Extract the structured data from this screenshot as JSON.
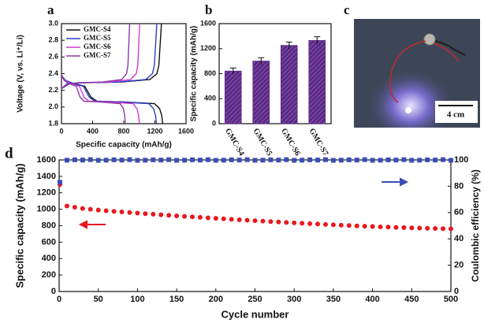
{
  "panel_labels": [
    "a",
    "b",
    "c",
    "d"
  ],
  "photo": {
    "scale_bar": "4 cm"
  },
  "chart_data": [
    {
      "type": "line",
      "xlabel": "Specific capacity (mAh/g)",
      "ylabel": "Voltage (V, vs. Li⁺/Li)",
      "xlim": [
        0,
        1600
      ],
      "xticks": [
        0,
        400,
        800,
        1200,
        1600
      ],
      "ylim": [
        1.8,
        3.0
      ],
      "yticks": [
        1.8,
        {
          "value": 2.0,
          "label": "2.0"
        },
        2.2,
        2.4,
        2.6,
        2.8,
        {
          "value": 3.0,
          "label": "3.0"
        }
      ],
      "series": [
        {
          "name": "GMC-S4",
          "color": "#111111",
          "x": [
            0,
            52,
            156,
            299,
            377,
            455,
            806,
            1196,
            1261,
            1287,
            1300,
            null,
            0,
            103,
            297,
            774,
            1135,
            1226,
            1251,
            1271,
            1284
          ],
          "values": [
            2.38,
            2.32,
            2.28,
            2.25,
            2.12,
            2.07,
            2.06,
            2.04,
            1.98,
            1.9,
            1.8,
            null,
            2.22,
            2.28,
            2.29,
            2.3,
            2.33,
            2.4,
            2.5,
            2.8,
            3.0
          ]
        },
        {
          "name": "GMC-S5",
          "color": "#2b3fc4",
          "x": [
            0,
            49,
            146,
            281,
            354,
            427,
            756,
            1122,
            1183,
            1208,
            1220,
            null,
            0,
            98,
            283,
            738,
            1082,
            1169,
            1193,
            1212,
            1224
          ],
          "values": [
            2.38,
            2.32,
            2.28,
            2.25,
            2.12,
            2.07,
            2.06,
            2.04,
            1.98,
            1.9,
            1.8,
            null,
            2.22,
            2.28,
            2.29,
            2.3,
            2.33,
            2.4,
            2.5,
            2.8,
            3.0
          ]
        },
        {
          "name": "GMC-S6",
          "color": "#d63ad0",
          "x": [
            0,
            40,
            120,
            230,
            290,
            350,
            620,
            920,
            970,
            990,
            1000,
            null,
            0,
            81,
            232,
            606,
            889,
            960,
            980,
            995,
            1005
          ],
          "values": [
            2.38,
            2.32,
            2.28,
            2.25,
            2.12,
            2.07,
            2.06,
            2.04,
            1.98,
            1.9,
            1.8,
            null,
            2.22,
            2.28,
            2.29,
            2.3,
            2.33,
            2.4,
            2.5,
            2.8,
            3.0
          ]
        },
        {
          "name": "GMC-S7",
          "color": "#8a3aa8",
          "x": [
            0,
            33,
            98,
            189,
            238,
            287,
            508,
            754,
            795,
            812,
            820,
            null,
            0,
            70,
            202,
            528,
            774,
            836,
            854,
            867,
            876
          ],
          "values": [
            2.38,
            2.32,
            2.28,
            2.25,
            2.12,
            2.07,
            2.06,
            2.04,
            1.98,
            1.9,
            1.8,
            null,
            2.22,
            2.28,
            2.29,
            2.3,
            2.33,
            2.4,
            2.5,
            2.8,
            3.0
          ]
        }
      ]
    },
    {
      "type": "bar",
      "ylabel": "Specific capacity (mAh/g)",
      "categories": [
        "GMC-S4",
        "GMC-S5",
        "GMC-S6",
        "GMC-S7"
      ],
      "values": [
        840,
        1000,
        1250,
        1330
      ],
      "errors": [
        50,
        55,
        55,
        60
      ],
      "color": "#5b2a86",
      "ylim": [
        0,
        1600
      ],
      "yticks": [
        0,
        400,
        800,
        1200,
        1600
      ]
    },
    {
      "type": "scatter",
      "xlabel": "Cycle number",
      "ylabel": "Specific capacity (mAh/g)",
      "y2label": "Coulombic efficiency (%)",
      "xlim": [
        0,
        500
      ],
      "xticks": [
        0,
        50,
        100,
        150,
        200,
        250,
        300,
        350,
        400,
        450,
        500
      ],
      "ylim": [
        0,
        1600
      ],
      "yticks": [
        0,
        200,
        400,
        600,
        800,
        1000,
        1200,
        1400,
        1600
      ],
      "y2lim": [
        0,
        100
      ],
      "y2ticks": [
        0,
        20,
        40,
        60,
        80,
        100
      ],
      "x": [
        1,
        10,
        20,
        30,
        40,
        50,
        60,
        70,
        80,
        90,
        100,
        110,
        120,
        130,
        140,
        150,
        160,
        170,
        180,
        190,
        200,
        210,
        220,
        230,
        240,
        250,
        260,
        270,
        280,
        290,
        300,
        310,
        320,
        330,
        340,
        350,
        360,
        370,
        380,
        390,
        400,
        410,
        420,
        430,
        440,
        450,
        460,
        470,
        480,
        490,
        500
      ],
      "series": [
        {
          "color": "#e8191f",
          "values": [
            1300,
            1040,
            1025,
            1010,
            1000,
            990,
            982,
            975,
            968,
            960,
            953,
            946,
            940,
            933,
            927,
            920,
            914,
            908,
            902,
            896,
            890,
            884,
            878,
            872,
            867,
            861,
            856,
            850,
            845,
            840,
            835,
            830,
            825,
            820,
            815,
            811,
            806,
            802,
            798,
            794,
            790,
            786,
            783,
            780,
            777,
            774,
            771,
            769,
            766,
            764,
            762
          ]
        },
        {
          "color": "#3a4fb5",
          "axis": "y2",
          "values": [
            83,
            99.8,
            100.1,
            99.9,
            100.2,
            99.7,
            99.8,
            100.1,
            99.9,
            100.2,
            99.7,
            99.8,
            100.1,
            99.9,
            100.2,
            99.7,
            99.8,
            100.1,
            99.9,
            100.2,
            99.7,
            99.8,
            100.1,
            99.9,
            100.2,
            99.7,
            99.8,
            100.1,
            99.9,
            100.2,
            99.7,
            99.8,
            100.1,
            99.9,
            100.2,
            99.7,
            99.8,
            100.1,
            99.9,
            100.2,
            99.7,
            99.8,
            100.1,
            99.9,
            100.2,
            99.7,
            99.8,
            100.1,
            99.9,
            100.2,
            99.7
          ]
        }
      ]
    }
  ]
}
